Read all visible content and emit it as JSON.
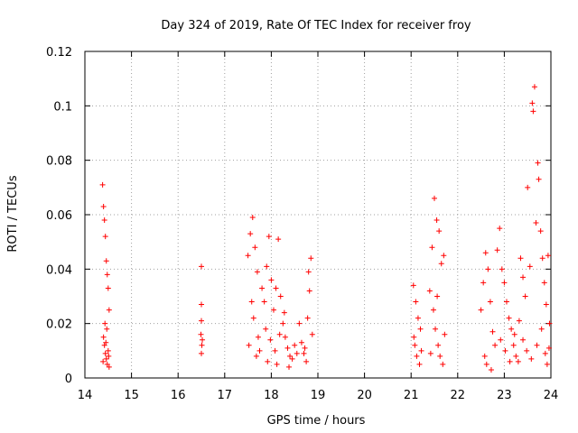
{
  "chart_data": {
    "type": "scatter",
    "title": "Day 324 of 2019, Rate Of TEC Index for receiver froy",
    "xlabel": "GPS time / hours",
    "ylabel": "ROTI / TECUs",
    "xlim": [
      14,
      24
    ],
    "ylim": [
      0,
      0.12
    ],
    "xticks": [
      14,
      15,
      16,
      17,
      18,
      19,
      20,
      21,
      22,
      23,
      24
    ],
    "xtick_labels": [
      "14",
      "15",
      "16",
      "17",
      "18",
      "19",
      "20",
      "21",
      "22",
      "23",
      "24"
    ],
    "yticks": [
      0,
      0.02,
      0.04,
      0.06,
      0.08,
      0.1,
      0.12
    ],
    "ytick_labels": [
      "0",
      "0.02",
      "0.04",
      "0.06",
      "0.08",
      "0.1",
      "0.12"
    ],
    "grid": true,
    "marker": "+",
    "color": "#ff0000",
    "series": [
      {
        "name": "ROTI",
        "points": [
          [
            14.38,
            0.071
          ],
          [
            14.4,
            0.063
          ],
          [
            14.42,
            0.058
          ],
          [
            14.44,
            0.052
          ],
          [
            14.46,
            0.043
          ],
          [
            14.48,
            0.038
          ],
          [
            14.5,
            0.033
          ],
          [
            14.52,
            0.025
          ],
          [
            14.4,
            0.015
          ],
          [
            14.42,
            0.012
          ],
          [
            14.44,
            0.009
          ],
          [
            14.46,
            0.007
          ],
          [
            14.48,
            0.005
          ],
          [
            14.5,
            0.01
          ],
          [
            14.52,
            0.004
          ],
          [
            14.39,
            0.006
          ],
          [
            14.43,
            0.02
          ],
          [
            14.47,
            0.018
          ],
          [
            14.45,
            0.013
          ],
          [
            14.51,
            0.008
          ],
          [
            16.5,
            0.041
          ],
          [
            16.5,
            0.027
          ],
          [
            16.5,
            0.021
          ],
          [
            16.49,
            0.016
          ],
          [
            16.51,
            0.012
          ],
          [
            16.5,
            0.009
          ],
          [
            16.52,
            0.014
          ],
          [
            17.5,
            0.045
          ],
          [
            17.55,
            0.053
          ],
          [
            17.6,
            0.059
          ],
          [
            17.65,
            0.048
          ],
          [
            17.7,
            0.039
          ],
          [
            17.58,
            0.028
          ],
          [
            17.62,
            0.022
          ],
          [
            17.72,
            0.015
          ],
          [
            17.52,
            0.012
          ],
          [
            17.68,
            0.008
          ],
          [
            17.8,
            0.033
          ],
          [
            17.85,
            0.028
          ],
          [
            17.9,
            0.041
          ],
          [
            17.95,
            0.052
          ],
          [
            18.0,
            0.036
          ],
          [
            18.05,
            0.025
          ],
          [
            18.1,
            0.033
          ],
          [
            18.15,
            0.051
          ],
          [
            18.2,
            0.03
          ],
          [
            18.25,
            0.02
          ],
          [
            18.3,
            0.015
          ],
          [
            18.35,
            0.011
          ],
          [
            18.4,
            0.008
          ],
          [
            18.45,
            0.007
          ],
          [
            18.5,
            0.012
          ],
          [
            17.88,
            0.018
          ],
          [
            17.98,
            0.014
          ],
          [
            18.08,
            0.01
          ],
          [
            18.18,
            0.016
          ],
          [
            18.28,
            0.024
          ],
          [
            18.6,
            0.02
          ],
          [
            18.65,
            0.013
          ],
          [
            18.7,
            0.009
          ],
          [
            18.75,
            0.006
          ],
          [
            18.8,
            0.039
          ],
          [
            18.85,
            0.044
          ],
          [
            18.82,
            0.032
          ],
          [
            18.78,
            0.022
          ],
          [
            18.88,
            0.016
          ],
          [
            18.72,
            0.011
          ],
          [
            17.75,
            0.01
          ],
          [
            17.92,
            0.006
          ],
          [
            18.12,
            0.005
          ],
          [
            18.38,
            0.004
          ],
          [
            18.55,
            0.009
          ],
          [
            21.05,
            0.034
          ],
          [
            21.1,
            0.028
          ],
          [
            21.15,
            0.022
          ],
          [
            21.2,
            0.018
          ],
          [
            21.08,
            0.012
          ],
          [
            21.12,
            0.008
          ],
          [
            21.18,
            0.005
          ],
          [
            21.22,
            0.01
          ],
          [
            21.06,
            0.015
          ],
          [
            21.4,
            0.032
          ],
          [
            21.45,
            0.048
          ],
          [
            21.5,
            0.066
          ],
          [
            21.55,
            0.058
          ],
          [
            21.6,
            0.054
          ],
          [
            21.65,
            0.042
          ],
          [
            21.7,
            0.045
          ],
          [
            21.48,
            0.025
          ],
          [
            21.52,
            0.018
          ],
          [
            21.58,
            0.012
          ],
          [
            21.62,
            0.008
          ],
          [
            21.68,
            0.005
          ],
          [
            21.42,
            0.009
          ],
          [
            21.72,
            0.016
          ],
          [
            21.56,
            0.03
          ],
          [
            22.5,
            0.025
          ],
          [
            22.55,
            0.035
          ],
          [
            22.6,
            0.046
          ],
          [
            22.65,
            0.04
          ],
          [
            22.7,
            0.028
          ],
          [
            22.75,
            0.017
          ],
          [
            22.8,
            0.012
          ],
          [
            22.58,
            0.008
          ],
          [
            22.62,
            0.005
          ],
          [
            22.72,
            0.003
          ],
          [
            22.85,
            0.047
          ],
          [
            22.9,
            0.055
          ],
          [
            22.95,
            0.04
          ],
          [
            23.0,
            0.035
          ],
          [
            23.05,
            0.028
          ],
          [
            23.1,
            0.022
          ],
          [
            23.15,
            0.018
          ],
          [
            23.2,
            0.012
          ],
          [
            23.25,
            0.008
          ],
          [
            23.3,
            0.006
          ],
          [
            23.35,
            0.044
          ],
          [
            23.4,
            0.037
          ],
          [
            23.45,
            0.03
          ],
          [
            23.5,
            0.07
          ],
          [
            23.55,
            0.041
          ],
          [
            23.6,
            0.101
          ],
          [
            23.62,
            0.098
          ],
          [
            23.65,
            0.107
          ],
          [
            23.68,
            0.057
          ],
          [
            23.72,
            0.079
          ],
          [
            23.74,
            0.073
          ],
          [
            23.78,
            0.054
          ],
          [
            23.82,
            0.044
          ],
          [
            23.86,
            0.035
          ],
          [
            23.9,
            0.027
          ],
          [
            23.94,
            0.045
          ],
          [
            23.97,
            0.02
          ],
          [
            23.4,
            0.014
          ],
          [
            23.48,
            0.01
          ],
          [
            23.58,
            0.007
          ],
          [
            23.7,
            0.012
          ],
          [
            23.8,
            0.018
          ],
          [
            23.88,
            0.009
          ],
          [
            23.92,
            0.005
          ],
          [
            23.96,
            0.011
          ],
          [
            22.92,
            0.014
          ],
          [
            23.02,
            0.01
          ],
          [
            23.12,
            0.006
          ],
          [
            23.22,
            0.016
          ],
          [
            23.32,
            0.021
          ]
        ]
      }
    ]
  }
}
